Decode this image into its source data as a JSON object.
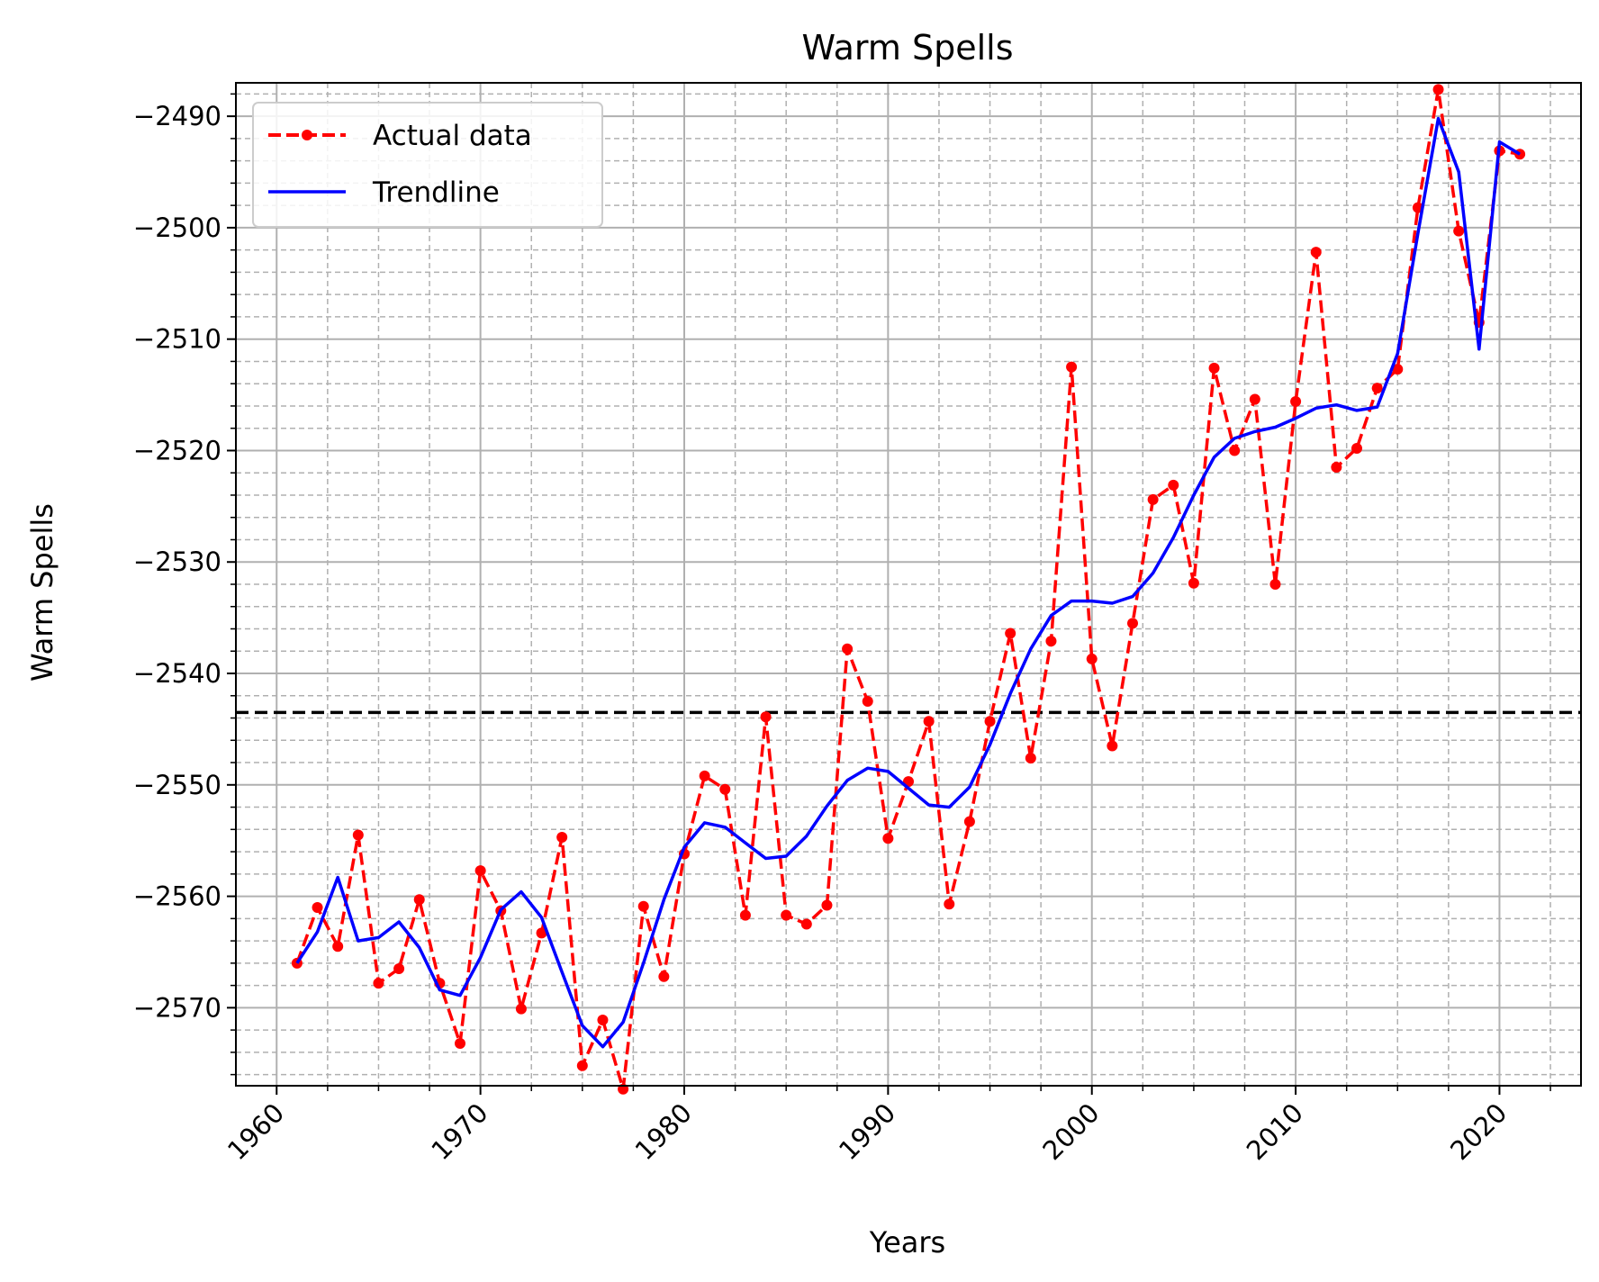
{
  "chart_data": {
    "type": "line",
    "title": "Warm Spells",
    "xlabel": "Years",
    "ylabel": "Warm Spells",
    "xlim": [
      1958,
      2024
    ],
    "ylim": [
      -2577,
      -2487
    ],
    "x_ticks": [
      1960,
      1970,
      1980,
      1990,
      2000,
      2010,
      2020
    ],
    "y_ticks": [
      -2570,
      -2560,
      -2550,
      -2540,
      -2530,
      -2520,
      -2510,
      -2500,
      -2490
    ],
    "x_minor_step": 2.5,
    "y_minor_step": 2,
    "grid": true,
    "legend_position": "upper-left",
    "reference_line": {
      "y": -2543.5,
      "style": "dashed",
      "color": "#000000"
    },
    "x": [
      1961,
      1962,
      1963,
      1964,
      1965,
      1966,
      1967,
      1968,
      1969,
      1970,
      1971,
      1972,
      1973,
      1974,
      1975,
      1976,
      1977,
      1978,
      1979,
      1980,
      1981,
      1982,
      1983,
      1984,
      1985,
      1986,
      1987,
      1988,
      1989,
      1990,
      1991,
      1992,
      1993,
      1994,
      1995,
      1996,
      1997,
      1998,
      1999,
      2000,
      2001,
      2002,
      2003,
      2004,
      2005,
      2006,
      2007,
      2008,
      2009,
      2010,
      2011,
      2012,
      2013,
      2014,
      2015,
      2016,
      2017,
      2018,
      2019,
      2020,
      2021
    ],
    "series": [
      {
        "name": "Actual data",
        "color": "#ff0000",
        "style": "dashed-with-dots",
        "values": [
          -2566,
          -2561,
          -2564.5,
          -2554.5,
          -2567.8,
          -2566.5,
          -2560.3,
          -2567.8,
          -2573.2,
          -2557.7,
          -2561.3,
          -2570.1,
          -2563.3,
          -2554.7,
          -2575.2,
          -2571.1,
          -2577.3,
          -2560.9,
          -2567.2,
          -2556.2,
          -2549.2,
          -2550.4,
          -2561.7,
          -2543.9,
          -2561.7,
          -2562.5,
          -2560.8,
          -2537.8,
          -2542.5,
          -2554.8,
          -2549.7,
          -2544.3,
          -2560.7,
          -2553.3,
          -2544.3,
          -2536.4,
          -2547.6,
          -2537.1,
          -2512.5,
          -2538.7,
          -2546.5,
          -2535.5,
          -2524.4,
          -2523.1,
          -2531.9,
          -2512.6,
          -2520,
          -2515.4,
          -2532,
          -2515.6,
          -2502.2,
          -2521.5,
          -2519.8,
          -2514.4,
          -2512.7,
          -2498.2,
          -2487.6,
          -2500.3,
          -2508.5,
          -2493.1,
          -2493.4
        ]
      },
      {
        "name": "Trendline",
        "color": "#0000ff",
        "style": "solid",
        "values": [
          -2566,
          -2563.2,
          -2558.3,
          -2564,
          -2563.7,
          -2562.3,
          -2564.6,
          -2568.4,
          -2568.9,
          -2565.5,
          -2561.2,
          -2559.6,
          -2561.9,
          -2566.8,
          -2571.6,
          -2573.5,
          -2571.3,
          -2566,
          -2560.3,
          -2555.6,
          -2553.4,
          -2553.8,
          -2555.2,
          -2556.6,
          -2556.4,
          -2554.6,
          -2551.9,
          -2549.6,
          -2548.5,
          -2548.8,
          -2550.3,
          -2551.8,
          -2552,
          -2550.2,
          -2546.4,
          -2541.8,
          -2537.8,
          -2534.8,
          -2533.5,
          -2533.5,
          -2533.7,
          -2533.1,
          -2531,
          -2527.8,
          -2524,
          -2520.6,
          -2518.9,
          -2518.3,
          -2517.9,
          -2517.1,
          -2516.2,
          -2515.9,
          -2516.4,
          -2516.1,
          -2511.3,
          -2500.5,
          -2490.2,
          -2495,
          -2510.9,
          -2492.3,
          -2493.4
        ]
      }
    ]
  }
}
